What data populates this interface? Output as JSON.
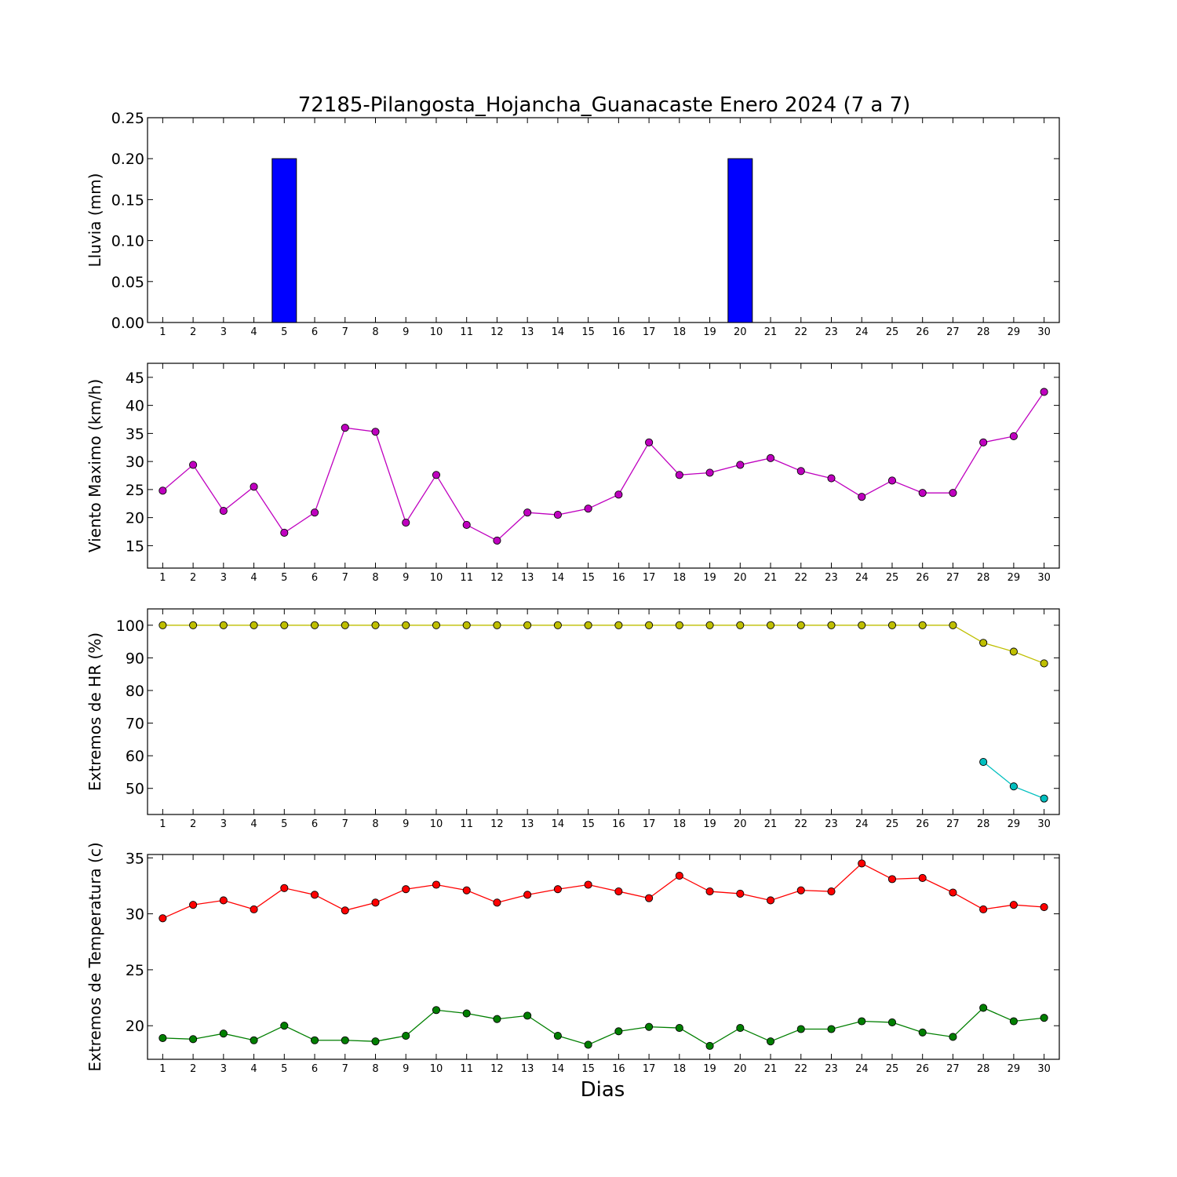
{
  "chart_data": {
    "title": "72185-Pilangosta_Hojancha_Guanacaste Enero 2024  (7 a 7)",
    "xlabel": "Dias",
    "days": [
      1,
      2,
      3,
      4,
      5,
      6,
      7,
      8,
      9,
      10,
      11,
      12,
      13,
      14,
      15,
      16,
      17,
      18,
      19,
      20,
      21,
      22,
      23,
      24,
      25,
      26,
      27,
      28,
      29,
      30
    ],
    "panels": [
      {
        "type": "bar",
        "ylabel": "Lluvia (mm)",
        "ylim": [
          0,
          0.25
        ],
        "yticks": [
          "0.00",
          "0.05",
          "0.10",
          "0.15",
          "0.20",
          "0.25"
        ],
        "series": [
          {
            "color": "#0000ff",
            "values": [
              0,
              0,
              0,
              0,
              0.2,
              0,
              0,
              0,
              0,
              0,
              0,
              0,
              0,
              0,
              0,
              0,
              0,
              0,
              0,
              0.2,
              0,
              0,
              0,
              0,
              0,
              0,
              0,
              0,
              0,
              0
            ]
          }
        ]
      },
      {
        "type": "line",
        "ylabel": "Viento Maximo (km/h)",
        "ylim": [
          11,
          47.5
        ],
        "yticks": [
          "15",
          "20",
          "25",
          "30",
          "35",
          "40",
          "45"
        ],
        "series": [
          {
            "color": "#bf00bf",
            "values": [
              24.8,
              29.4,
              21.2,
              25.5,
              17.3,
              20.9,
              36.0,
              35.3,
              19.1,
              27.6,
              18.7,
              15.9,
              20.9,
              20.5,
              21.6,
              24.1,
              33.4,
              27.6,
              28.0,
              29.4,
              30.6,
              28.3,
              27.0,
              23.7,
              26.6,
              24.4,
              24.4,
              33.4,
              34.5,
              42.4
            ]
          }
        ]
      },
      {
        "type": "line",
        "ylabel": "Extremos de HR (%)",
        "ylim": [
          42,
          105
        ],
        "yticks": [
          "50",
          "60",
          "70",
          "80",
          "90",
          "100"
        ],
        "series": [
          {
            "color": "#bfbf00",
            "values": [
              100,
              100,
              100,
              100,
              100,
              100,
              100,
              100,
              100,
              100,
              100,
              100,
              100,
              100,
              100,
              100,
              100,
              100,
              100,
              100,
              100,
              100,
              100,
              100,
              100,
              100,
              100,
              94.6,
              91.9,
              88.3
            ]
          },
          {
            "color": "#00bfbf",
            "values": [
              null,
              null,
              null,
              null,
              null,
              null,
              null,
              null,
              null,
              null,
              null,
              null,
              null,
              null,
              null,
              null,
              null,
              null,
              null,
              null,
              null,
              null,
              null,
              null,
              null,
              null,
              null,
              58.1,
              50.6,
              46.9
            ]
          }
        ]
      },
      {
        "type": "line",
        "ylabel": "Extremos de Temperatura (c)",
        "ylim": [
          17,
          35.3
        ],
        "yticks": [
          "20",
          "25",
          "30",
          "35"
        ],
        "series": [
          {
            "color": "#ff0000",
            "values": [
              29.6,
              30.8,
              31.2,
              30.4,
              32.3,
              31.7,
              30.3,
              31.0,
              32.2,
              32.6,
              32.1,
              31.0,
              31.7,
              32.2,
              32.6,
              32.0,
              31.4,
              33.4,
              32.0,
              31.8,
              31.2,
              32.1,
              32.0,
              34.5,
              33.1,
              33.2,
              31.9,
              30.4,
              30.8,
              30.6
            ]
          },
          {
            "color": "#007f00",
            "values": [
              18.9,
              18.8,
              19.3,
              18.7,
              20.0,
              18.7,
              18.7,
              18.6,
              19.1,
              21.4,
              21.1,
              20.6,
              20.9,
              19.1,
              18.3,
              19.5,
              19.9,
              19.8,
              18.2,
              19.8,
              18.6,
              19.7,
              19.7,
              20.4,
              20.3,
              19.4,
              19.0,
              21.6,
              20.4,
              20.7
            ]
          }
        ]
      }
    ]
  }
}
